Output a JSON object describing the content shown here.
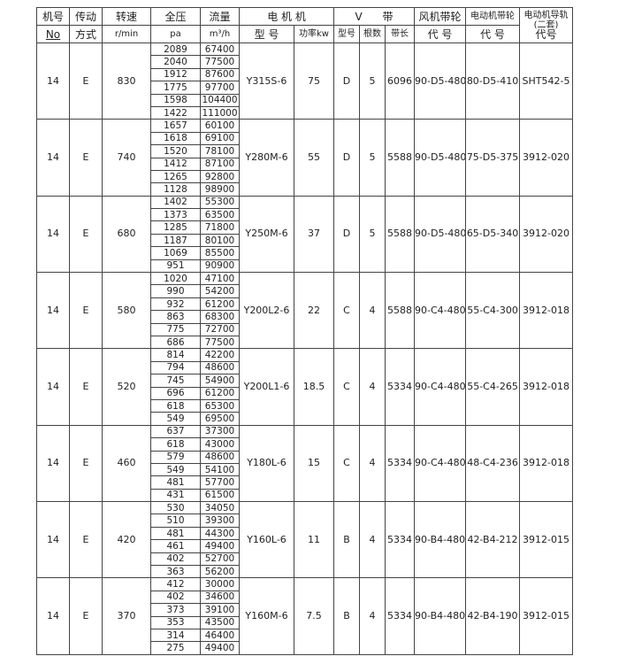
{
  "header": {
    "no": "机号",
    "no_sub": "No",
    "drive": "传动",
    "drive_sub": "方式",
    "speed": "转速",
    "speed_sub": "r/min",
    "pressure": "全压",
    "pressure_sub": "pa",
    "flow": "流量",
    "flow_sub": "m³/h",
    "motor": "电 机 机",
    "motor_model": "型 号",
    "motor_power": "功率kw",
    "vbelt": "V      带",
    "belt_type": "型号",
    "belt_count": "根数",
    "belt_length": "带长",
    "fan_pulley": "风机带轮",
    "fan_pulley_sub": "代 号",
    "motor_pulley": "电动机带轮",
    "motor_pulley_sub": "代 号",
    "rail": "电动机导轨",
    "rail_sub1": "(二套)",
    "rail_sub2": "代号"
  },
  "groups": [
    {
      "no": "14",
      "drive": "E",
      "speed": "830",
      "pressure": [
        "2089",
        "2040",
        "1912",
        "1775",
        "1598",
        "1422"
      ],
      "flow": [
        "67400",
        "77500",
        "87600",
        "97700",
        "104400",
        "111000"
      ],
      "motor_model": "Y315S-6",
      "power": "75",
      "belt_type": "D",
      "belt_count": "5",
      "belt_length": "6096",
      "fan_pulley": "90-D5-480",
      "motor_pulley": "80-D5-410",
      "rail": "SHT542-5"
    },
    {
      "no": "14",
      "drive": "E",
      "speed": "740",
      "pressure": [
        "1657",
        "1618",
        "1520",
        "1412",
        "1265",
        "1128"
      ],
      "flow": [
        "60100",
        "69100",
        "78100",
        "87100",
        "92800",
        "98900"
      ],
      "motor_model": "Y280M-6",
      "power": "55",
      "belt_type": "D",
      "belt_count": "5",
      "belt_length": "5588",
      "fan_pulley": "90-D5-480",
      "motor_pulley": "75-D5-375",
      "rail": "3912-020"
    },
    {
      "no": "14",
      "drive": "E",
      "speed": "680",
      "pressure": [
        "1402",
        "1373",
        "1285",
        "1187",
        "1069",
        "951"
      ],
      "flow": [
        "55300",
        "63500",
        "71800",
        "80100",
        "85500",
        "90900"
      ],
      "motor_model": "Y250M-6",
      "power": "37",
      "belt_type": "D",
      "belt_count": "5",
      "belt_length": "5588",
      "fan_pulley": "90-D5-480",
      "motor_pulley": "65-D5-340",
      "rail": "3912-020"
    },
    {
      "no": "14",
      "drive": "E",
      "speed": "580",
      "pressure": [
        "1020",
        "990",
        "932",
        "863",
        "775",
        "686"
      ],
      "flow": [
        "47100",
        "54200",
        "61200",
        "68300",
        "72700",
        "77500"
      ],
      "motor_model": "Y200L2-6",
      "power": "22",
      "belt_type": "C",
      "belt_count": "4",
      "belt_length": "5588",
      "fan_pulley": "90-C4-480",
      "motor_pulley": "55-C4-300",
      "rail": "3912-018"
    },
    {
      "no": "14",
      "drive": "E",
      "speed": "520",
      "pressure": [
        "814",
        "794",
        "745",
        "696",
        "618",
        "549"
      ],
      "flow": [
        "42200",
        "48600",
        "54900",
        "61200",
        "65300",
        "69500"
      ],
      "motor_model": "Y200L1-6",
      "power": "18.5",
      "belt_type": "C",
      "belt_count": "4",
      "belt_length": "5334",
      "fan_pulley": "90-C4-480",
      "motor_pulley": "55-C4-265",
      "rail": "3912-018"
    },
    {
      "no": "14",
      "drive": "E",
      "speed": "460",
      "pressure": [
        "637",
        "618",
        "579",
        "549",
        "481",
        "431"
      ],
      "flow": [
        "37300",
        "43000",
        "48600",
        "54100",
        "57700",
        "61500"
      ],
      "motor_model": "Y180L-6",
      "power": "15",
      "belt_type": "C",
      "belt_count": "4",
      "belt_length": "5334",
      "fan_pulley": "90-C4-480",
      "motor_pulley": "48-C4-236",
      "rail": "3912-018"
    },
    {
      "no": "14",
      "drive": "E",
      "speed": "420",
      "pressure": [
        "530",
        "510",
        "481",
        "461",
        "402",
        "363"
      ],
      "flow": [
        "34050",
        "39300",
        "44300",
        "49400",
        "52700",
        "56200"
      ],
      "motor_model": "Y160L-6",
      "power": "11",
      "belt_type": "B",
      "belt_count": "4",
      "belt_length": "5334",
      "fan_pulley": "90-B4-480",
      "motor_pulley": "42-B4-212",
      "rail": "3912-015"
    },
    {
      "no": "14",
      "drive": "E",
      "speed": "370",
      "pressure": [
        "412",
        "402",
        "373",
        "353",
        "314",
        "275"
      ],
      "flow": [
        "30000",
        "34600",
        "39100",
        "43500",
        "46400",
        "49400"
      ],
      "motor_model": "Y160M-6",
      "power": "7.5",
      "belt_type": "B",
      "belt_count": "4",
      "belt_length": "5334",
      "fan_pulley": "90-B4-480",
      "motor_pulley": "42-B4-190",
      "rail": "3912-015"
    }
  ]
}
